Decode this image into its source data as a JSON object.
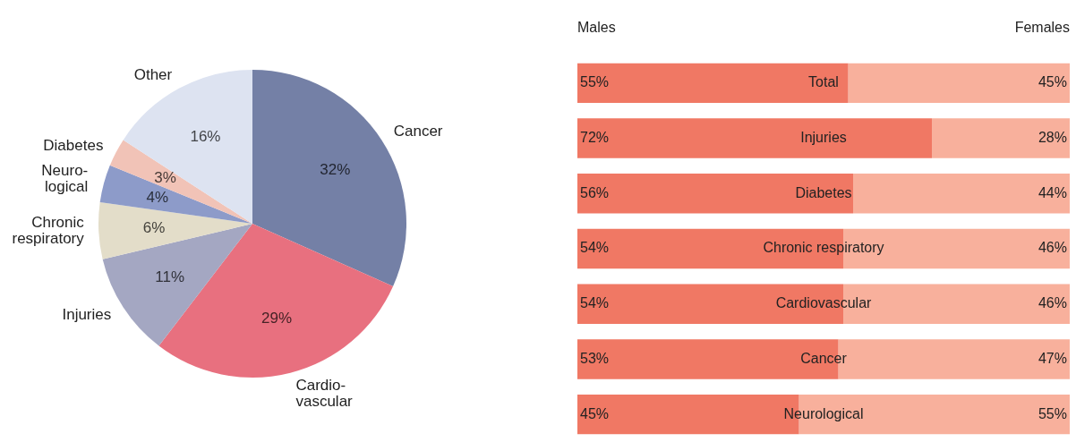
{
  "chart_data": [
    {
      "type": "pie",
      "categories": [
        "Cancer",
        "Cardio-vascular",
        "Injuries",
        "Chronic respiratory",
        "Neuro-logical",
        "Diabetes",
        "Other"
      ],
      "values": [
        32,
        29,
        11,
        6,
        4,
        3,
        16
      ],
      "colors": [
        "#7480a6",
        "#e8707f",
        "#a4a7c2",
        "#e3ddc9",
        "#8d9bc9",
        "#f1c3b7",
        "#dde3f1"
      ],
      "value_labels": [
        "32%",
        "29%",
        "11%",
        "6%",
        "4%",
        "3%",
        "16%"
      ]
    },
    {
      "type": "bar",
      "orientation": "horizontal",
      "stacked": true,
      "categories": [
        "Total",
        "Injuries",
        "Diabetes",
        "Chronic respiratory",
        "Cardiovascular",
        "Cancer",
        "Neurological"
      ],
      "series": [
        {
          "name": "Males",
          "color": "#f07864",
          "values": [
            55,
            72,
            56,
            54,
            54,
            53,
            45
          ],
          "value_labels": [
            "55%",
            "72%",
            "56%",
            "54%",
            "54%",
            "53%",
            "45%"
          ]
        },
        {
          "name": "Females",
          "color": "#f8b09c",
          "values": [
            45,
            28,
            44,
            46,
            46,
            47,
            55
          ],
          "value_labels": [
            "45%",
            "28%",
            "44%",
            "46%",
            "46%",
            "47%",
            "55%"
          ]
        }
      ],
      "xlim": [
        0,
        100
      ],
      "tick_labels": "y"
    }
  ]
}
